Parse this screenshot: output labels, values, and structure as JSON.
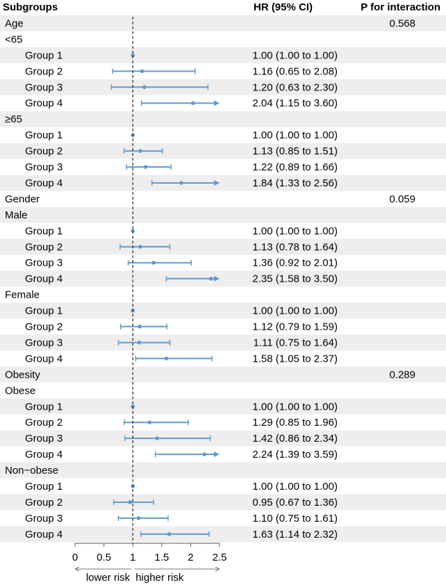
{
  "chart_data": {
    "type": "forest",
    "headers": {
      "subgroups": "Subgroups",
      "hr": "HR (95% CI)",
      "p": "P for interaction"
    },
    "reference_line": 1,
    "xlim": [
      0,
      2.5
    ],
    "x_ticks": [
      "0",
      "0.5",
      "1",
      "1.5",
      "2",
      "2.5"
    ],
    "x_tick_values": [
      0,
      0.5,
      1,
      1.5,
      2,
      2.5
    ],
    "x_arrow_labels": {
      "left": "lower risk",
      "right": "higher risk"
    },
    "colors": {
      "point": "#5B9BD5",
      "band": "#EEEEEE",
      "refline": "#333333"
    },
    "rows": [
      {
        "label": "Age",
        "kind": "variable",
        "p": "0.568"
      },
      {
        "label": "<65",
        "kind": "category"
      },
      {
        "label": "Group 1",
        "kind": "group",
        "hr": 1.0,
        "lo": 1.0,
        "hi": 1.0,
        "text": "1.00 (1.00 to 1.00)"
      },
      {
        "label": "Group 2",
        "kind": "group",
        "hr": 1.16,
        "lo": 0.65,
        "hi": 2.08,
        "text": "1.16 (0.65 to 2.08)"
      },
      {
        "label": "Group 3",
        "kind": "group",
        "hr": 1.2,
        "lo": 0.63,
        "hi": 2.3,
        "text": "1.20 (0.63 to 2.30)"
      },
      {
        "label": "Group 4",
        "kind": "group",
        "hr": 2.04,
        "lo": 1.15,
        "hi": 3.6,
        "text": "2.04 (1.15 to 3.60)"
      },
      {
        "label": "≥65",
        "kind": "category"
      },
      {
        "label": "Group 1",
        "kind": "group",
        "hr": 1.0,
        "lo": 1.0,
        "hi": 1.0,
        "text": "1.00 (1.00 to 1.00)"
      },
      {
        "label": "Group 2",
        "kind": "group",
        "hr": 1.13,
        "lo": 0.85,
        "hi": 1.51,
        "text": "1.13 (0.85 to 1.51)"
      },
      {
        "label": "Group 3",
        "kind": "group",
        "hr": 1.22,
        "lo": 0.89,
        "hi": 1.66,
        "text": "1.22 (0.89 to 1.66)"
      },
      {
        "label": "Group 4",
        "kind": "group",
        "hr": 1.84,
        "lo": 1.33,
        "hi": 2.56,
        "text": "1.84 (1.33 to 2.56)"
      },
      {
        "label": "Gender",
        "kind": "variable",
        "p": "0.059"
      },
      {
        "label": "Male",
        "kind": "category"
      },
      {
        "label": "Group 1",
        "kind": "group",
        "hr": 1.0,
        "lo": 1.0,
        "hi": 1.0,
        "text": "1.00 (1.00 to 1.00)"
      },
      {
        "label": "Group 2",
        "kind": "group",
        "hr": 1.13,
        "lo": 0.78,
        "hi": 1.64,
        "text": "1.13 (0.78 to 1.64)"
      },
      {
        "label": "Group 3",
        "kind": "group",
        "hr": 1.36,
        "lo": 0.92,
        "hi": 2.01,
        "text": "1.36 (0.92 to 2.01)"
      },
      {
        "label": "Group 4",
        "kind": "group",
        "hr": 2.35,
        "lo": 1.58,
        "hi": 3.5,
        "text": "2.35 (1.58 to 3.50)"
      },
      {
        "label": "Female",
        "kind": "category"
      },
      {
        "label": "Group 1",
        "kind": "group",
        "hr": 1.0,
        "lo": 1.0,
        "hi": 1.0,
        "text": "1.00 (1.00 to 1.00)"
      },
      {
        "label": "Group 2",
        "kind": "group",
        "hr": 1.12,
        "lo": 0.79,
        "hi": 1.59,
        "text": "1.12 (0.79 to 1.59)"
      },
      {
        "label": "Group 3",
        "kind": "group",
        "hr": 1.11,
        "lo": 0.75,
        "hi": 1.64,
        "text": "1.11 (0.75 to 1.64)"
      },
      {
        "label": "Group 4",
        "kind": "group",
        "hr": 1.58,
        "lo": 1.05,
        "hi": 2.37,
        "text": "1.58 (1.05 to 2.37)"
      },
      {
        "label": "Obesity",
        "kind": "variable",
        "p": "0.289"
      },
      {
        "label": "Obese",
        "kind": "category"
      },
      {
        "label": "Group 1",
        "kind": "group",
        "hr": 1.0,
        "lo": 1.0,
        "hi": 1.0,
        "text": "1.00 (1.00 to 1.00)"
      },
      {
        "label": "Group 2",
        "kind": "group",
        "hr": 1.29,
        "lo": 0.85,
        "hi": 1.96,
        "text": "1.29 (0.85 to 1.96)"
      },
      {
        "label": "Group 3",
        "kind": "group",
        "hr": 1.42,
        "lo": 0.86,
        "hi": 2.34,
        "text": "1.42 (0.86 to 2.34)"
      },
      {
        "label": "Group 4",
        "kind": "group",
        "hr": 2.24,
        "lo": 1.39,
        "hi": 3.59,
        "text": "2.24 (1.39 to 3.59)"
      },
      {
        "label": "Non−obese",
        "kind": "category"
      },
      {
        "label": "Group 1",
        "kind": "group",
        "hr": 1.0,
        "lo": 1.0,
        "hi": 1.0,
        "text": "1.00 (1.00 to 1.00)"
      },
      {
        "label": "Group 2",
        "kind": "group",
        "hr": 0.95,
        "lo": 0.67,
        "hi": 1.36,
        "text": "0.95 (0.67 to 1.36)"
      },
      {
        "label": "Group 3",
        "kind": "group",
        "hr": 1.1,
        "lo": 0.75,
        "hi": 1.61,
        "text": "1.10 (0.75 to 1.61)"
      },
      {
        "label": "Group 4",
        "kind": "group",
        "hr": 1.63,
        "lo": 1.14,
        "hi": 2.32,
        "text": "1.63 (1.14 to 2.32)"
      }
    ]
  }
}
